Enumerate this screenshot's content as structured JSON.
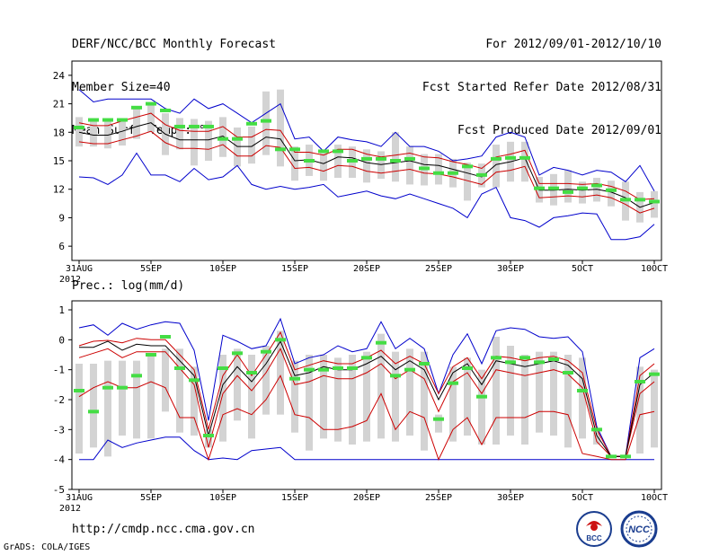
{
  "header": {
    "title": "DERF/NCC/BCC Monthly Forecast",
    "member_size": "Member Size=40",
    "variable": "Mean Surf. Temp.: °C",
    "period": "For 2012/09/01-2012/10/10",
    "started": "Fcst Started Refer Date 2012/08/31",
    "produced": "Fcst Produced Date 2012/09/01"
  },
  "footer": {
    "url": "http://cmdp.ncc.cma.gov.cn",
    "grads": "GrADS: COLA/IGES",
    "logo_bcc": "BCC",
    "logo_ncc": "NCC"
  },
  "colors": {
    "box": "#d3d3d3",
    "mean": "#000000",
    "spread": "#cc0000",
    "envelope": "#0000cc",
    "obs": "#44dd44"
  },
  "chart_data": [
    {
      "type": "box-ensemble",
      "title": "Mean Surf. Temp.: °C",
      "categories": [
        "31AUG",
        "5SEP",
        "10SEP",
        "15SEP",
        "20SEP",
        "25SEP",
        "30SEP",
        "5OCT",
        "10OCT"
      ],
      "x_label_year": "2012",
      "ylim": [
        4.5,
        25.5
      ],
      "yticks": [
        "24",
        "21",
        "18",
        "15",
        "12",
        "9",
        "6"
      ],
      "ytick_values": [
        24,
        21,
        18,
        15,
        12,
        9,
        6
      ],
      "days": 41,
      "mean": [
        18.0,
        17.7,
        17.7,
        18.1,
        18.6,
        19.0,
        17.8,
        17.2,
        17.2,
        17.2,
        17.6,
        16.5,
        16.5,
        17.5,
        17.3,
        15.0,
        15.1,
        14.7,
        15.4,
        15.3,
        14.8,
        14.6,
        14.8,
        15.0,
        14.6,
        14.5,
        14.1,
        13.7,
        13.3,
        14.6,
        14.9,
        15.3,
        11.9,
        11.9,
        12.0,
        11.9,
        12.0,
        11.7,
        11.1,
        10.1,
        10.6
      ],
      "upper": [
        19.0,
        18.7,
        18.7,
        19.2,
        19.6,
        20.0,
        18.8,
        18.2,
        18.1,
        18.1,
        18.6,
        17.5,
        17.5,
        18.3,
        18.2,
        15.9,
        15.9,
        15.6,
        16.2,
        16.2,
        15.7,
        15.4,
        15.6,
        15.8,
        15.4,
        15.3,
        14.9,
        14.6,
        14.2,
        15.4,
        15.7,
        16.1,
        12.6,
        12.6,
        12.6,
        12.5,
        12.6,
        12.3,
        11.8,
        10.9,
        11.0
      ],
      "lower": [
        17.0,
        16.8,
        16.8,
        17.2,
        17.6,
        18.1,
        16.9,
        16.3,
        16.3,
        16.2,
        16.7,
        15.5,
        15.5,
        16.6,
        16.4,
        14.2,
        14.3,
        13.9,
        14.5,
        14.4,
        13.9,
        13.7,
        13.9,
        14.1,
        13.7,
        13.6,
        13.3,
        12.9,
        12.5,
        13.8,
        14.0,
        14.4,
        11.1,
        11.2,
        11.3,
        11.2,
        11.4,
        11.1,
        10.4,
        9.5,
        10.0
      ],
      "env_max": [
        22.5,
        21.2,
        21.5,
        21.5,
        21.5,
        21.5,
        20.5,
        20.0,
        21.5,
        20.5,
        21.0,
        20.0,
        19.0,
        20.0,
        21.0,
        17.3,
        17.5,
        16.0,
        17.5,
        17.2,
        17.0,
        16.5,
        18.0,
        16.5,
        16.5,
        16.0,
        15.0,
        15.2,
        15.5,
        17.5,
        18.0,
        17.5,
        13.5,
        14.3,
        14.0,
        13.5,
        14.0,
        13.8,
        12.8,
        14.5,
        11.8
      ],
      "env_min": [
        13.3,
        13.2,
        12.5,
        13.5,
        15.8,
        13.5,
        13.5,
        12.8,
        14.2,
        13.0,
        13.3,
        14.5,
        12.5,
        12.0,
        12.3,
        12.0,
        12.2,
        12.5,
        11.2,
        11.5,
        11.8,
        11.3,
        11.0,
        11.5,
        11.0,
        10.5,
        10.0,
        9.0,
        11.5,
        12.2,
        9.0,
        8.7,
        8.0,
        9.0,
        9.2,
        9.5,
        9.4,
        6.7,
        6.7,
        7.0,
        8.3
      ],
      "box_high": [
        19.6,
        19.4,
        19.4,
        19.4,
        20.7,
        20.9,
        20.0,
        19.5,
        19.4,
        19.2,
        19.6,
        18.5,
        18.6,
        22.3,
        22.5,
        16.5,
        16.7,
        15.8,
        16.7,
        16.5,
        16.2,
        16.0,
        18.0,
        16.5,
        15.7,
        15.7,
        15.2,
        14.8,
        14.7,
        16.7,
        17.0,
        17.0,
        13.3,
        13.6,
        14.0,
        12.8,
        13.2,
        12.9,
        12.8,
        11.7,
        11.8
      ],
      "box_low": [
        16.5,
        16.5,
        16.3,
        16.6,
        17.3,
        18.0,
        15.6,
        16.2,
        14.5,
        15.0,
        15.4,
        14.4,
        14.7,
        15.6,
        14.4,
        12.9,
        13.4,
        12.9,
        13.2,
        13.2,
        12.7,
        13.1,
        12.8,
        12.5,
        12.4,
        12.5,
        12.2,
        10.8,
        12.2,
        12.2,
        12.8,
        12.8,
        10.6,
        10.3,
        10.6,
        10.5,
        10.7,
        10.2,
        8.7,
        8.5,
        9.0
      ],
      "obs": [
        18.5,
        19.3,
        19.3,
        19.3,
        20.6,
        21.0,
        20.3,
        18.6,
        18.6,
        18.6,
        17.3,
        17.3,
        18.9,
        19.2,
        16.2,
        16.2,
        15.0,
        16.0,
        16.0,
        15.0,
        15.2,
        15.2,
        15.0,
        15.2,
        14.2,
        13.7,
        13.7,
        14.4,
        13.5,
        15.2,
        15.3,
        15.3,
        12.1,
        12.1,
        11.7,
        12.1,
        12.4,
        11.9,
        10.9,
        10.9,
        10.7
      ]
    },
    {
      "type": "box-ensemble",
      "title": "Prec.: log(mm/d)",
      "categories": [
        "31AUG",
        "5SEP",
        "10SEP",
        "15SEP",
        "20SEP",
        "25SEP",
        "30SEP",
        "5OCT",
        "10OCT"
      ],
      "x_label_year": "2012",
      "ylim": [
        -5,
        1.3
      ],
      "yticks": [
        "1",
        "0",
        "-1",
        "-2",
        "-3",
        "-4",
        "-5"
      ],
      "ytick_values": [
        1,
        0,
        -1,
        -2,
        -3,
        -4,
        -5
      ],
      "days": 41,
      "mean": [
        -0.25,
        -0.25,
        -0.05,
        -0.35,
        -0.15,
        -0.2,
        -0.2,
        -0.7,
        -1.2,
        -3.2,
        -1.5,
        -0.9,
        -1.4,
        -0.8,
        -0.05,
        -1.2,
        -1.1,
        -0.9,
        -1.0,
        -1.0,
        -0.8,
        -0.55,
        -1.0,
        -0.7,
        -1.0,
        -2.0,
        -1.1,
        -0.8,
        -1.5,
        -0.7,
        -0.8,
        -0.9,
        -0.8,
        -0.7,
        -0.85,
        -1.3,
        -3.2,
        -3.9,
        -3.9,
        -1.5,
        -1.1
      ],
      "upper": [
        -0.2,
        -0.05,
        -0.02,
        -0.1,
        0.05,
        0.0,
        0.0,
        -0.5,
        -1.0,
        -3.0,
        -1.2,
        -0.5,
        -1.2,
        -0.5,
        0.25,
        -1.0,
        -0.85,
        -0.7,
        -0.8,
        -0.8,
        -0.6,
        -0.35,
        -0.8,
        -0.55,
        -0.8,
        -1.8,
        -0.9,
        -0.6,
        -1.3,
        -0.55,
        -0.6,
        -0.7,
        -0.6,
        -0.55,
        -0.7,
        -1.1,
        -3.0,
        -3.9,
        -3.9,
        -1.2,
        -0.8
      ],
      "lower": [
        -0.6,
        -0.45,
        -0.3,
        -0.6,
        -0.4,
        -0.4,
        -0.4,
        -0.95,
        -1.5,
        -3.6,
        -1.8,
        -1.2,
        -1.7,
        -1.1,
        -0.3,
        -1.5,
        -1.4,
        -1.2,
        -1.3,
        -1.3,
        -1.1,
        -0.8,
        -1.3,
        -1.0,
        -1.3,
        -2.4,
        -1.4,
        -1.1,
        -1.8,
        -1.0,
        -1.1,
        -1.2,
        -1.1,
        -1.0,
        -1.15,
        -1.6,
        -3.4,
        -3.9,
        -3.9,
        -1.8,
        -1.4
      ],
      "lower2": [
        -1.9,
        -1.6,
        -1.4,
        -1.6,
        -1.6,
        -1.4,
        -1.6,
        -2.6,
        -2.6,
        -4.0,
        -2.5,
        -2.3,
        -2.5,
        -2.0,
        -1.2,
        -2.5,
        -2.6,
        -3.0,
        -3.0,
        -2.9,
        -2.7,
        -1.8,
        -3.0,
        -2.4,
        -2.6,
        -4.0,
        -3.0,
        -2.6,
        -3.5,
        -2.6,
        -2.6,
        -2.6,
        -2.4,
        -2.4,
        -2.5,
        -3.8,
        -3.9,
        -4.0,
        -4.0,
        -2.5,
        -2.4
      ],
      "env_max": [
        0.4,
        0.5,
        0.15,
        0.55,
        0.35,
        0.5,
        0.6,
        0.55,
        -0.35,
        -2.7,
        0.15,
        -0.05,
        -0.3,
        -0.2,
        0.7,
        -0.8,
        -0.6,
        -0.5,
        -0.2,
        -0.4,
        -0.3,
        0.6,
        -0.3,
        0.05,
        -0.3,
        -1.8,
        -0.5,
        0.2,
        -0.8,
        0.3,
        0.4,
        0.35,
        0.1,
        0.05,
        0.1,
        -0.4,
        -2.9,
        -3.9,
        -3.9,
        -0.6,
        -0.3
      ],
      "env_min": [
        -4.0,
        -4.0,
        -3.35,
        -3.6,
        -3.45,
        -3.35,
        -3.25,
        -3.25,
        -3.7,
        -4.0,
        -3.95,
        -4.0,
        -3.7,
        -3.65,
        -3.6,
        -4.0,
        -4.0,
        -4.0,
        -4.0,
        -4.0,
        -4.0,
        -4.0,
        -4.0,
        -4.0,
        -4.0,
        -4.0,
        -4.0,
        -4.0,
        -4.0,
        -4.0,
        -4.0,
        -4.0,
        -4.0,
        -4.0,
        -4.0,
        -4.0,
        -4.0,
        -4.0,
        -4.0,
        -4.0,
        -4.0
      ],
      "box_high": [
        -0.8,
        -0.8,
        -0.7,
        -0.7,
        -0.7,
        -0.5,
        -0.3,
        -0.3,
        -0.9,
        -3.0,
        -0.5,
        -0.3,
        -0.5,
        -0.2,
        0.3,
        -0.7,
        -0.5,
        -0.5,
        -0.6,
        -0.5,
        -0.4,
        0.2,
        -0.4,
        -0.3,
        -0.4,
        -2.5,
        -0.9,
        -0.6,
        -1.0,
        0.1,
        -0.2,
        -0.5,
        -0.4,
        -0.4,
        -0.5,
        -0.6,
        -3.1,
        -3.9,
        -3.9,
        -0.9,
        -1.0
      ],
      "box_low": [
        -3.8,
        -3.6,
        -3.9,
        -3.2,
        -3.3,
        -3.3,
        -2.4,
        -3.1,
        -3.2,
        -3.6,
        -3.4,
        -2.7,
        -3.3,
        -2.5,
        -2.5,
        -3.1,
        -3.7,
        -3.3,
        -3.4,
        -3.5,
        -3.4,
        -3.3,
        -3.4,
        -3.2,
        -3.7,
        -3.1,
        -3.4,
        -3.2,
        -3.5,
        -3.5,
        -3.2,
        -3.5,
        -3.1,
        -3.2,
        -3.6,
        -3.3,
        -3.5,
        -3.9,
        -3.9,
        -3.8,
        -3.6
      ],
      "obs": [
        -1.7,
        -2.4,
        -1.6,
        -1.6,
        -1.2,
        -0.5,
        0.1,
        -0.95,
        -1.35,
        -3.2,
        -0.95,
        -0.45,
        -1.1,
        -0.4,
        0.0,
        -1.3,
        -1.0,
        -1.0,
        -0.95,
        -0.95,
        -0.6,
        -0.1,
        -1.2,
        -1.0,
        -0.8,
        -2.65,
        -1.45,
        -0.95,
        -1.9,
        -0.6,
        -0.75,
        -0.6,
        -0.75,
        -0.65,
        -1.1,
        -1.7,
        -3.0,
        -3.9,
        -3.9,
        -1.4,
        -1.15
      ]
    }
  ]
}
